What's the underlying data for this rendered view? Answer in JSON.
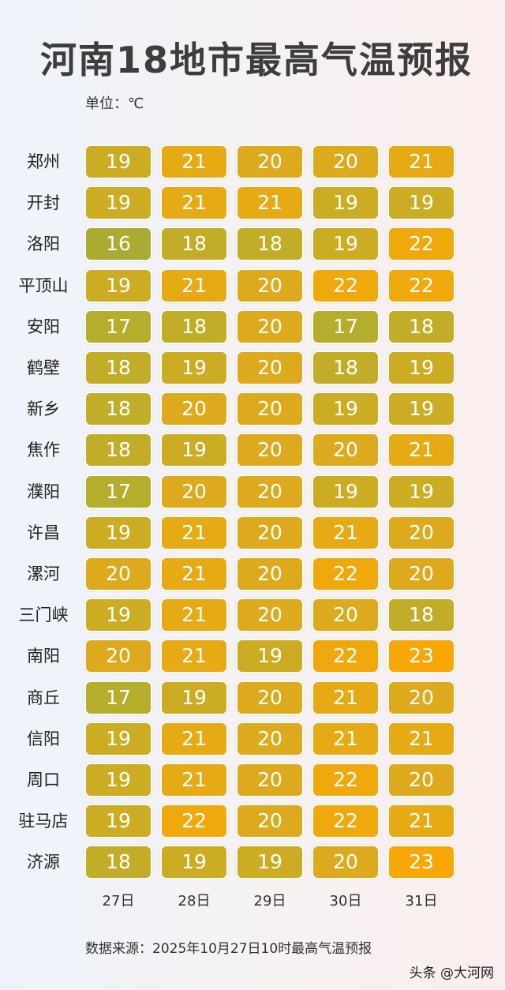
{
  "title": "河南18地市最高气温预报",
  "unit_label": "单位：℃",
  "source": "数据来源：2025年10月27日10时最高气温预报",
  "watermark": "头条 @大河网",
  "colors": {
    "16": "#a9ab32",
    "17": "#b5ad2c",
    "18": "#c1ad27",
    "19": "#ccac23",
    "20": "#dcaa1c",
    "21": "#e5aa14",
    "22": "#f0a90c",
    "23": "#f7a808"
  },
  "chart_data": {
    "type": "table",
    "title": "河南18地市最高气温预报",
    "unit": "℃",
    "columns": [
      "27日",
      "28日",
      "29日",
      "30日",
      "31日"
    ],
    "rows": [
      {
        "city": "郑州",
        "values": [
          19,
          21,
          20,
          20,
          21
        ]
      },
      {
        "city": "开封",
        "values": [
          19,
          21,
          21,
          19,
          19
        ]
      },
      {
        "city": "洛阳",
        "values": [
          16,
          18,
          18,
          19,
          22
        ]
      },
      {
        "city": "平顶山",
        "values": [
          19,
          21,
          20,
          22,
          22
        ]
      },
      {
        "city": "安阳",
        "values": [
          17,
          18,
          20,
          17,
          18
        ]
      },
      {
        "city": "鹤壁",
        "values": [
          18,
          19,
          20,
          18,
          19
        ]
      },
      {
        "city": "新乡",
        "values": [
          18,
          20,
          20,
          19,
          19
        ]
      },
      {
        "city": "焦作",
        "values": [
          18,
          19,
          20,
          20,
          21
        ]
      },
      {
        "city": "濮阳",
        "values": [
          17,
          20,
          20,
          19,
          19
        ]
      },
      {
        "city": "许昌",
        "values": [
          19,
          21,
          20,
          21,
          20
        ]
      },
      {
        "city": "漯河",
        "values": [
          20,
          21,
          20,
          22,
          20
        ]
      },
      {
        "city": "三门峡",
        "values": [
          19,
          21,
          20,
          20,
          18
        ]
      },
      {
        "city": "南阳",
        "values": [
          20,
          21,
          19,
          22,
          23
        ]
      },
      {
        "city": "商丘",
        "values": [
          17,
          19,
          20,
          21,
          20
        ]
      },
      {
        "city": "信阳",
        "values": [
          19,
          21,
          20,
          21,
          21
        ]
      },
      {
        "city": "周口",
        "values": [
          19,
          21,
          20,
          22,
          20
        ]
      },
      {
        "city": "驻马店",
        "values": [
          19,
          22,
          20,
          22,
          21
        ]
      },
      {
        "city": "济源",
        "values": [
          18,
          19,
          19,
          20,
          23
        ]
      }
    ]
  }
}
